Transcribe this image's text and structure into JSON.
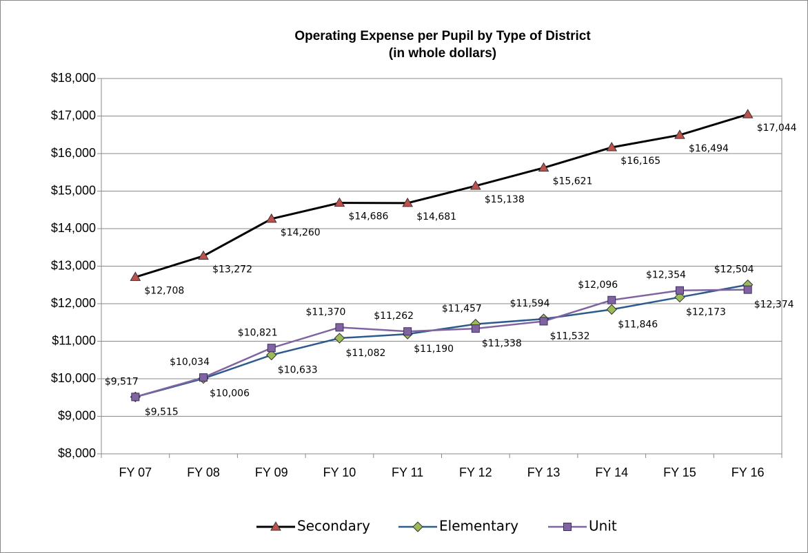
{
  "chart_data": {
    "type": "line",
    "title": "Operating Expense per Pupil by Type of District",
    "subtitle": "(in whole dollars)",
    "categories": [
      "FY 07",
      "FY 08",
      "FY 09",
      "FY 10",
      "FY 11",
      "FY 12",
      "FY 13",
      "FY 14",
      "FY 15",
      "FY 16"
    ],
    "series": [
      {
        "name": "Secondary",
        "color": "#000000",
        "marker": "triangle",
        "marker_color": "#c0504d",
        "values": [
          12708,
          13272,
          14260,
          14686,
          14681,
          15138,
          15621,
          16165,
          16494,
          17044
        ],
        "value_labels": [
          "$12,708",
          "$13,272",
          "$14,260",
          "$14,686",
          "$14,681",
          "$15,138",
          "$15,621",
          "$16,165",
          "$16,494",
          "$17,044"
        ]
      },
      {
        "name": "Elementary",
        "color": "#2c5b8c",
        "marker": "diamond",
        "marker_color": "#9bbb59",
        "values": [
          9515,
          10006,
          10633,
          11082,
          11190,
          11457,
          11594,
          11846,
          12173,
          12504
        ],
        "value_labels": [
          "$9,515",
          "$10,006",
          "$10,633",
          "$11,082",
          "$11,190",
          "$11,457",
          "$11,594",
          "$11,846",
          "$12,173",
          "$12,504"
        ]
      },
      {
        "name": "Unit",
        "color": "#8064a2",
        "marker": "square",
        "marker_color": "#8064a2",
        "values": [
          9517,
          10034,
          10821,
          11370,
          11262,
          11338,
          11532,
          12096,
          12354,
          12374
        ],
        "value_labels": [
          "$9,517",
          "$10,034",
          "$10,821",
          "$11,370",
          "$11,262",
          "$11,338",
          "$11,532",
          "$12,096",
          "$12,354",
          "$12,374"
        ]
      }
    ],
    "ylim": [
      8000,
      18000
    ],
    "yticks": [
      {
        "value": 8000,
        "label": "$8,000"
      },
      {
        "value": 9000,
        "label": "$9,000"
      },
      {
        "value": 10000,
        "label": "$10,000"
      },
      {
        "value": 11000,
        "label": "$11,000"
      },
      {
        "value": 12000,
        "label": "$12,000"
      },
      {
        "value": 13000,
        "label": "$13,000"
      },
      {
        "value": 14000,
        "label": "$14,000"
      },
      {
        "value": 15000,
        "label": "$15,000"
      },
      {
        "value": 16000,
        "label": "$16,000"
      },
      {
        "value": 17000,
        "label": "$17,000"
      },
      {
        "value": 18000,
        "label": "$18,000"
      }
    ],
    "grid": true,
    "legend": "bottom"
  }
}
